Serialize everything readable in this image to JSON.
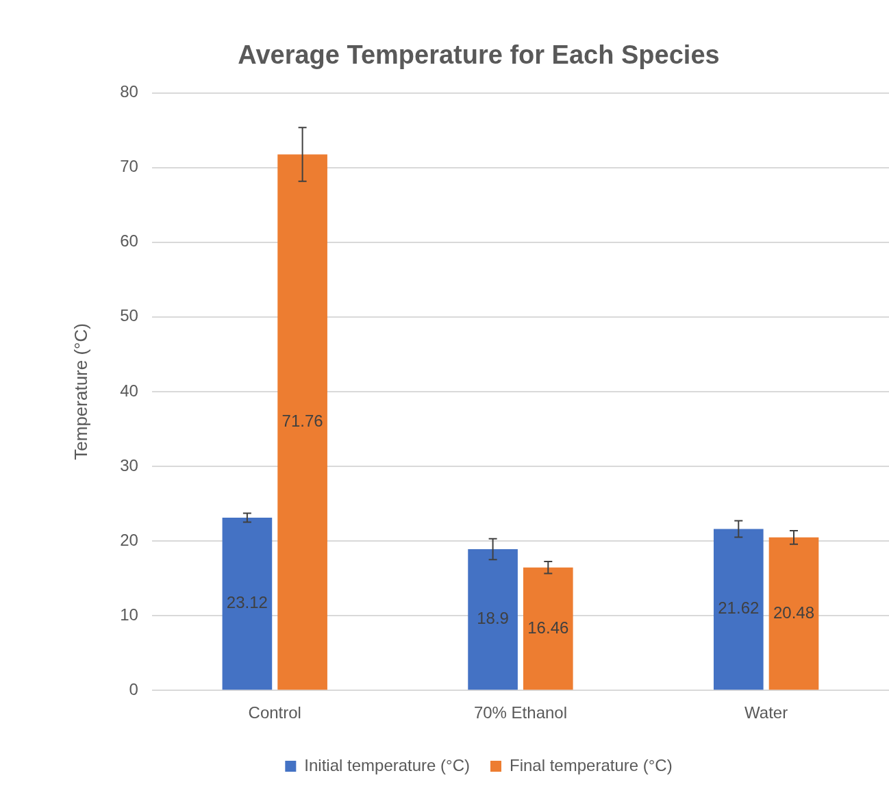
{
  "chart_data": {
    "type": "bar",
    "title": "Average Temperature for Each Species",
    "ylabel": "Temperature (°C)",
    "categories": [
      "Control",
      "70% Ethanol",
      "Water"
    ],
    "series": [
      {
        "name": "Initial temperature (°C)",
        "color": "#4472c4",
        "values": [
          23.12,
          18.9,
          21.62
        ],
        "errors": [
          0.6,
          1.4,
          1.1
        ]
      },
      {
        "name": "Final temperature (°C)",
        "color": "#ed7d31",
        "values": [
          71.76,
          16.46,
          20.48
        ],
        "errors": [
          3.6,
          0.8,
          0.9
        ]
      }
    ],
    "ylim": [
      0,
      80
    ],
    "yticks": [
      0,
      10,
      20,
      30,
      40,
      50,
      60,
      70,
      80
    ],
    "grid": "y",
    "legend": "bottom",
    "data_labels": true
  }
}
